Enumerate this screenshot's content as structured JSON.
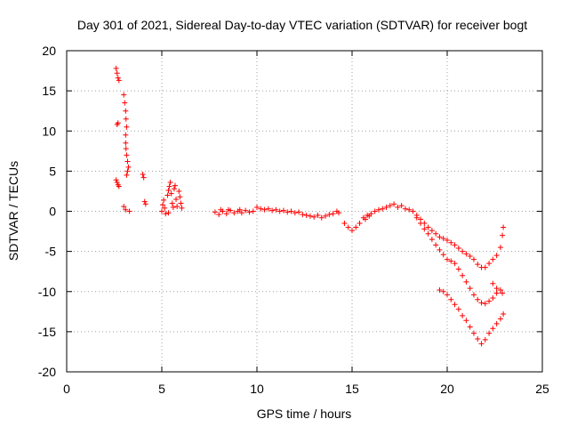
{
  "chart_data": {
    "type": "scatter",
    "title": "Day 301 of 2021, Sidereal Day-to-day VTEC variation (SDTVAR) for receiver bogt",
    "xlabel": "GPS time / hours",
    "ylabel": "SDTVAR / TECUs",
    "xlim": [
      0,
      25
    ],
    "ylim": [
      -20,
      20
    ],
    "xticks": [
      0,
      5,
      10,
      15,
      20,
      25
    ],
    "yticks": [
      -20,
      -15,
      -10,
      -5,
      0,
      5,
      10,
      15,
      20
    ],
    "grid": true,
    "marker": "plus",
    "color": "#ff0000",
    "series": [
      {
        "name": "SDTVAR",
        "points": [
          [
            2.6,
            17.8
          ],
          [
            2.65,
            17.2
          ],
          [
            2.7,
            16.6
          ],
          [
            2.75,
            16.3
          ],
          [
            2.7,
            11.0
          ],
          [
            2.65,
            10.8
          ],
          [
            2.6,
            3.9
          ],
          [
            2.65,
            3.6
          ],
          [
            2.7,
            3.3
          ],
          [
            2.75,
            3.1
          ],
          [
            3.0,
            14.5
          ],
          [
            3.05,
            13.5
          ],
          [
            3.1,
            12.5
          ],
          [
            3.12,
            11.5
          ],
          [
            3.15,
            10.5
          ],
          [
            3.1,
            9.5
          ],
          [
            3.1,
            8.5
          ],
          [
            3.12,
            7.8
          ],
          [
            3.15,
            7.0
          ],
          [
            3.2,
            6.2
          ],
          [
            3.25,
            5.5
          ],
          [
            3.2,
            5.0
          ],
          [
            3.15,
            4.5
          ],
          [
            3.0,
            0.6
          ],
          [
            3.1,
            0.2
          ],
          [
            3.3,
            0.0
          ],
          [
            4.0,
            4.6
          ],
          [
            4.05,
            4.2
          ],
          [
            4.1,
            1.2
          ],
          [
            4.15,
            0.9
          ],
          [
            5.0,
            0.0
          ],
          [
            5.05,
            0.8
          ],
          [
            5.1,
            1.4
          ],
          [
            5.15,
            0.4
          ],
          [
            5.2,
            -0.3
          ],
          [
            5.3,
            2.0
          ],
          [
            5.35,
            2.6
          ],
          [
            5.4,
            3.1
          ],
          [
            5.45,
            3.6
          ],
          [
            5.5,
            2.2
          ],
          [
            5.55,
            1.0
          ],
          [
            5.6,
            0.5
          ],
          [
            5.65,
            2.8
          ],
          [
            5.7,
            3.2
          ],
          [
            5.75,
            1.5
          ],
          [
            5.8,
            0.6
          ],
          [
            5.9,
            2.5
          ],
          [
            5.95,
            1.8
          ],
          [
            6.0,
            1.0
          ],
          [
            6.05,
            0.4
          ],
          [
            5.35,
            -0.2
          ],
          [
            7.8,
            -0.1
          ],
          [
            8.0,
            -0.4
          ],
          [
            8.2,
            0.0
          ],
          [
            8.4,
            -0.3
          ],
          [
            8.6,
            0.1
          ],
          [
            8.8,
            -0.2
          ],
          [
            9.0,
            0.0
          ],
          [
            9.2,
            -0.2
          ],
          [
            9.4,
            0.1
          ],
          [
            9.6,
            -0.1
          ],
          [
            9.8,
            0.0
          ],
          [
            8.1,
            0.2
          ],
          [
            8.5,
            0.2
          ],
          [
            9.1,
            0.2
          ],
          [
            10.0,
            0.5
          ],
          [
            10.2,
            0.3
          ],
          [
            10.4,
            0.2
          ],
          [
            10.6,
            0.3
          ],
          [
            10.8,
            0.1
          ],
          [
            11.0,
            0.2
          ],
          [
            11.2,
            0.0
          ],
          [
            11.4,
            0.1
          ],
          [
            11.6,
            -0.1
          ],
          [
            11.8,
            0.0
          ],
          [
            12.0,
            -0.2
          ],
          [
            12.2,
            -0.1
          ],
          [
            12.4,
            -0.4
          ],
          [
            12.6,
            -0.5
          ],
          [
            12.8,
            -0.6
          ],
          [
            13.0,
            -0.7
          ],
          [
            13.2,
            -0.5
          ],
          [
            13.4,
            -0.8
          ],
          [
            13.6,
            -0.6
          ],
          [
            13.8,
            -0.4
          ],
          [
            14.0,
            -0.3
          ],
          [
            14.2,
            0.0
          ],
          [
            14.3,
            -0.2
          ],
          [
            14.6,
            -1.5
          ],
          [
            14.8,
            -2.0
          ],
          [
            15.0,
            -2.4
          ],
          [
            15.2,
            -2.0
          ],
          [
            15.4,
            -1.5
          ],
          [
            15.6,
            -0.8
          ],
          [
            15.8,
            -0.5
          ],
          [
            15.7,
            -1.0
          ],
          [
            15.9,
            -0.6
          ],
          [
            16.0,
            -0.3
          ],
          [
            16.2,
            0.0
          ],
          [
            16.4,
            0.2
          ],
          [
            16.6,
            0.3
          ],
          [
            16.8,
            0.5
          ],
          [
            17.0,
            0.7
          ],
          [
            17.2,
            0.9
          ],
          [
            17.4,
            0.5
          ],
          [
            17.6,
            0.7
          ],
          [
            17.8,
            0.3
          ],
          [
            18.0,
            0.2
          ],
          [
            18.2,
            0.0
          ],
          [
            18.4,
            -0.5
          ],
          [
            18.6,
            -1.0
          ],
          [
            18.8,
            -1.5
          ],
          [
            19.0,
            -2.0
          ],
          [
            19.2,
            -2.4
          ],
          [
            19.4,
            -2.8
          ],
          [
            19.6,
            -3.2
          ],
          [
            19.8,
            -3.4
          ],
          [
            20.0,
            -3.6
          ],
          [
            20.2,
            -3.9
          ],
          [
            20.4,
            -4.2
          ],
          [
            20.6,
            -4.6
          ],
          [
            20.8,
            -5.0
          ],
          [
            21.0,
            -5.3
          ],
          [
            21.2,
            -5.6
          ],
          [
            21.4,
            -6.0
          ],
          [
            21.6,
            -6.6
          ],
          [
            21.8,
            -7.0
          ],
          [
            22.0,
            -7.0
          ],
          [
            22.2,
            -6.5
          ],
          [
            22.4,
            -6.0
          ],
          [
            22.6,
            -5.5
          ],
          [
            22.8,
            -4.5
          ],
          [
            22.9,
            -3.0
          ],
          [
            22.95,
            -2.0
          ],
          [
            18.4,
            -0.8
          ],
          [
            18.6,
            -1.5
          ],
          [
            18.8,
            -2.2
          ],
          [
            19.0,
            -2.8
          ],
          [
            19.2,
            -3.5
          ],
          [
            19.4,
            -4.2
          ],
          [
            19.6,
            -4.8
          ],
          [
            19.8,
            -5.4
          ],
          [
            20.0,
            -6.0
          ],
          [
            20.2,
            -6.2
          ],
          [
            20.4,
            -6.5
          ],
          [
            20.6,
            -7.2
          ],
          [
            20.8,
            -8.0
          ],
          [
            21.0,
            -8.8
          ],
          [
            21.2,
            -9.6
          ],
          [
            21.4,
            -10.4
          ],
          [
            21.6,
            -11.0
          ],
          [
            21.8,
            -11.4
          ],
          [
            22.0,
            -11.5
          ],
          [
            22.2,
            -11.2
          ],
          [
            22.4,
            -10.8
          ],
          [
            22.6,
            -10.2
          ],
          [
            22.8,
            -9.8
          ],
          [
            22.9,
            -10.2
          ],
          [
            22.4,
            -9.0
          ],
          [
            22.6,
            -9.6
          ],
          [
            19.6,
            -9.8
          ],
          [
            19.8,
            -10.0
          ],
          [
            20.0,
            -10.4
          ],
          [
            20.2,
            -11.0
          ],
          [
            20.4,
            -11.6
          ],
          [
            20.6,
            -12.2
          ],
          [
            20.8,
            -13.0
          ],
          [
            21.0,
            -13.6
          ],
          [
            21.2,
            -14.4
          ],
          [
            21.4,
            -15.2
          ],
          [
            21.6,
            -15.9
          ],
          [
            21.8,
            -16.5
          ],
          [
            22.0,
            -16.0
          ],
          [
            22.2,
            -15.2
          ],
          [
            22.4,
            -14.6
          ],
          [
            22.6,
            -14.0
          ],
          [
            22.8,
            -13.4
          ],
          [
            22.95,
            -12.8
          ]
        ]
      }
    ]
  }
}
